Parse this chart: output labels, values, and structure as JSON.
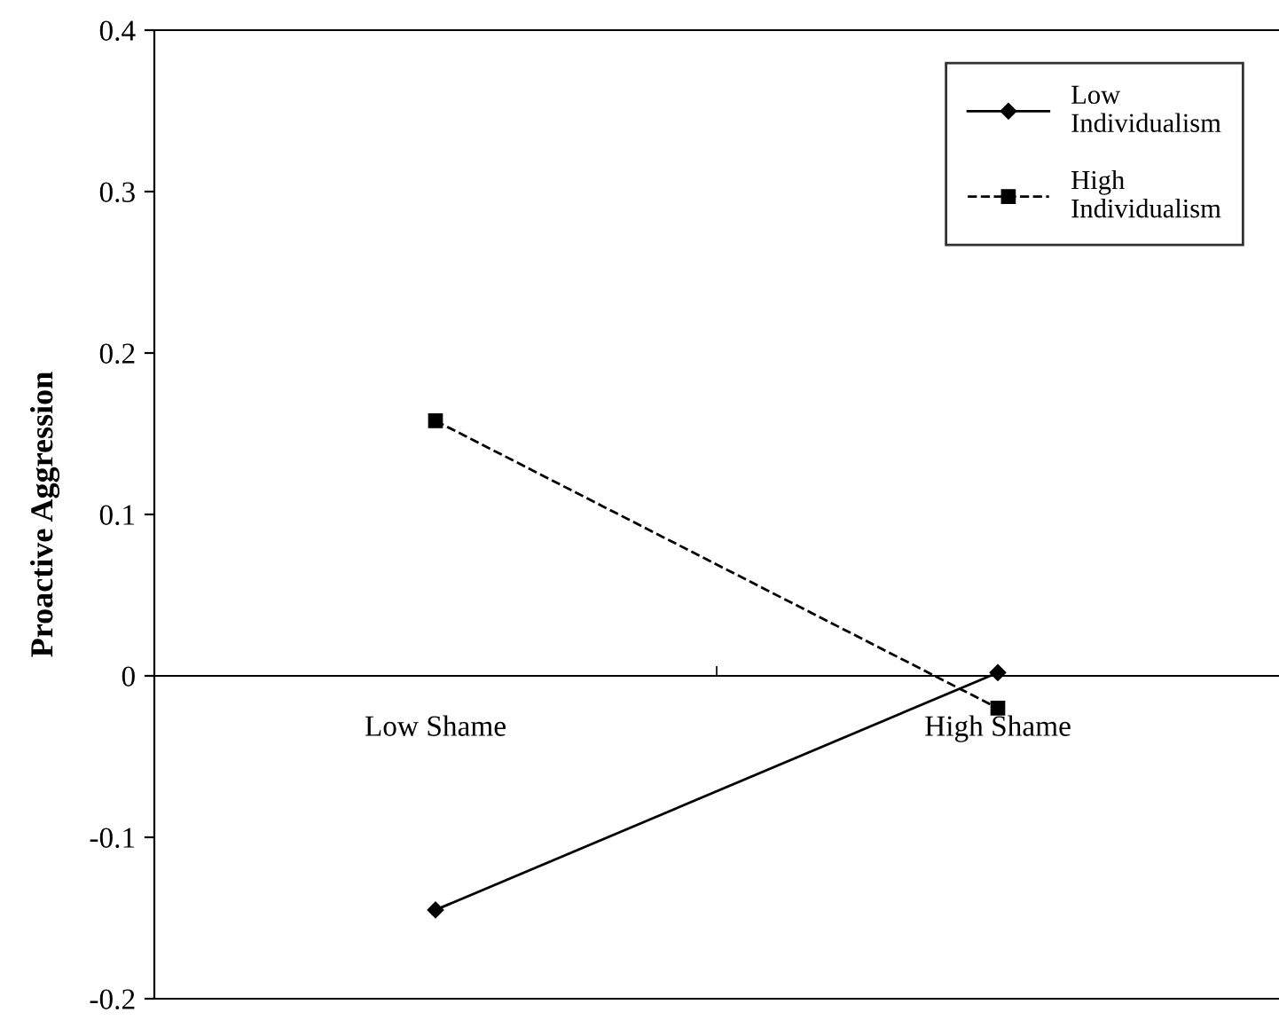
{
  "chart_data": {
    "type": "line",
    "ylabel": "Proactive Aggression",
    "categories": [
      "Low Shame",
      "High Shame"
    ],
    "series": [
      {
        "name": "Low Individualism",
        "color": "#000000",
        "values": [
          -0.145,
          0.002
        ],
        "marker": "diamond",
        "line_style": "solid"
      },
      {
        "name": "High Individualism",
        "color": "#000000",
        "values": [
          0.158,
          -0.02
        ],
        "marker": "square",
        "line_style": "dashed"
      }
    ],
    "ylim": [
      -0.2,
      0.4
    ],
    "yticks": [
      {
        "value": -0.2,
        "label": "-0.2"
      },
      {
        "value": -0.1,
        "label": "-0.1"
      },
      0,
      0.1,
      0.2,
      0.3,
      0.4
    ],
    "grid": false,
    "legend": "top right"
  }
}
